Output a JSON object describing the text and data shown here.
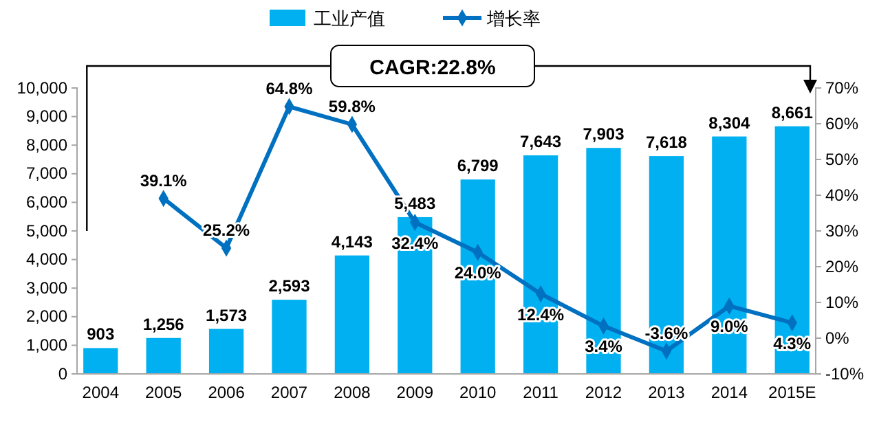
{
  "chart_data": {
    "type": "bar",
    "categories": [
      "2004",
      "2005",
      "2006",
      "2007",
      "2008",
      "2009",
      "2010",
      "2011",
      "2012",
      "2013",
      "2014",
      "2015E"
    ],
    "series": [
      {
        "name": "工业产值",
        "color": "#00b0f0",
        "values": [
          903,
          1256,
          1573,
          2593,
          4143,
          5483,
          6799,
          7643,
          7903,
          7618,
          8304,
          8661
        ],
        "value_labels": [
          "903",
          "1,256",
          "1,573",
          "2,593",
          "4,143",
          "5,483",
          "6,799",
          "7,643",
          "7,903",
          "7,618",
          "8,304",
          "8,661"
        ]
      },
      {
        "name": "增长率",
        "type": "line",
        "axis": "y2",
        "color": "#0070c0",
        "values": [
          null,
          39.1,
          25.2,
          64.8,
          59.8,
          32.4,
          24.0,
          12.4,
          3.4,
          -3.6,
          9.0,
          4.3
        ],
        "value_labels": [
          null,
          "39.1%",
          "25.2%",
          "64.8%",
          "59.8%",
          "32.4%",
          "24.0%",
          "12.4%",
          "3.4%",
          "-3.6%",
          "9.0%",
          "4.3%"
        ]
      }
    ],
    "ylim": [
      0,
      10000
    ],
    "yticks": [
      {
        "value": 0,
        "label": "0"
      },
      {
        "value": 1000,
        "label": "1,000"
      },
      {
        "value": 2000,
        "label": "2,000"
      },
      {
        "value": 3000,
        "label": "3,000"
      },
      {
        "value": 4000,
        "label": "4,000"
      },
      {
        "value": 5000,
        "label": "5,000"
      },
      {
        "value": 6000,
        "label": "6,000"
      },
      {
        "value": 7000,
        "label": "7,000"
      },
      {
        "value": 8000,
        "label": "8,000"
      },
      {
        "value": 9000,
        "label": "9,000"
      },
      {
        "value": 10000,
        "label": "10,000"
      }
    ],
    "y2lim": [
      -10,
      70
    ],
    "y2ticks": [
      {
        "value": -10,
        "label": "-10%"
      },
      {
        "value": 0,
        "label": "0%"
      },
      {
        "value": 10,
        "label": "10%"
      },
      {
        "value": 20,
        "label": "20%"
      },
      {
        "value": 30,
        "label": "30%"
      },
      {
        "value": 40,
        "label": "40%"
      },
      {
        "value": 50,
        "label": "50%"
      },
      {
        "value": 60,
        "label": "60%"
      },
      {
        "value": 70,
        "label": "70%"
      }
    ],
    "annotations": [
      "CAGR:22.8%"
    ],
    "legend": "top",
    "marker": "diamond",
    "grid": false
  }
}
